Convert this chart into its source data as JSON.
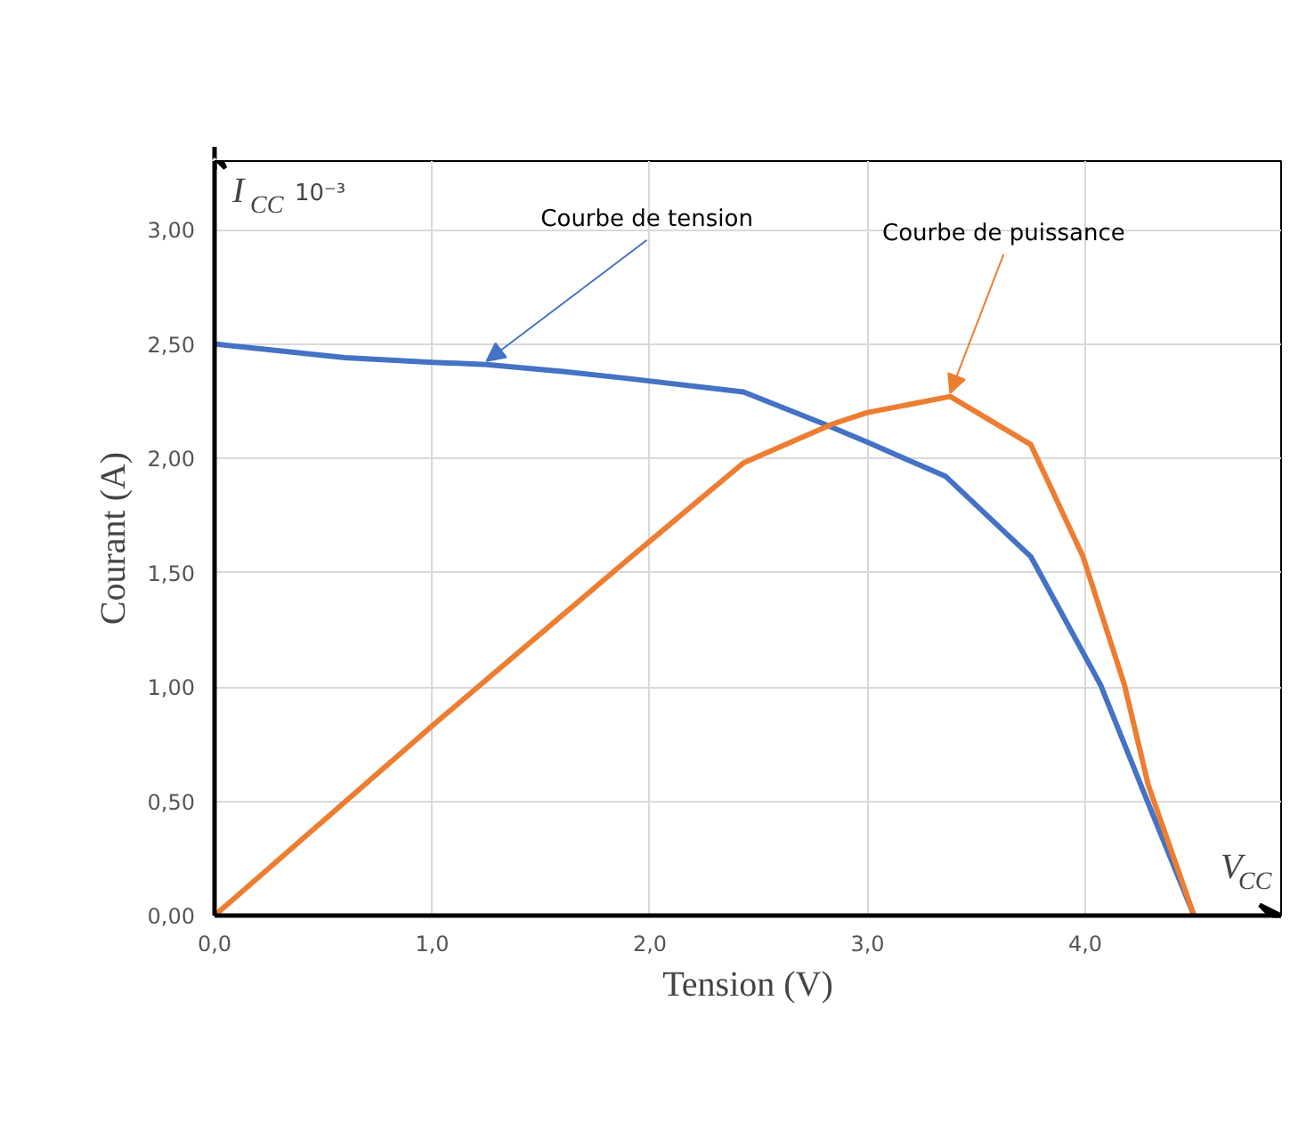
{
  "chart_data": {
    "type": "line",
    "xlabel": "Tension (V)",
    "ylabel": "Courant (A)",
    "annotations": [
      "I$_{CC}$",
      "10⁻³",
      "V$_{CC}$"
    ],
    "xlim": [
      0,
      4.9
    ],
    "ylim": [
      0,
      3.3
    ],
    "xticks": [
      {
        "value": 0,
        "label": "0,0"
      },
      {
        "value": 1,
        "label": "1,0"
      },
      {
        "value": 2,
        "label": "2,0"
      },
      {
        "value": 3,
        "label": "3,0"
      },
      {
        "value": 4,
        "label": "4,0"
      }
    ],
    "yticks": [
      {
        "value": 0,
        "label": "0,00"
      },
      {
        "value": 0.5,
        "label": "0,50"
      },
      {
        "value": 1,
        "label": "1,00"
      },
      {
        "value": 1.5,
        "label": "1,50"
      },
      {
        "value": 2,
        "label": "2,00"
      },
      {
        "value": 2.5,
        "label": "2,50"
      },
      {
        "value": 3,
        "label": "3,00"
      }
    ],
    "grid": true,
    "marker": "none",
    "line_style": "solid",
    "series": [
      {
        "name": "Courbe de tension",
        "color": "#4472c4",
        "x": [
          0,
          0.6,
          1.0,
          1.25,
          1.6,
          1.89,
          2.43,
          2.8,
          3.0,
          3.36,
          3.75,
          4.07,
          4.29,
          4.5
        ],
        "values": [
          2.5,
          2.44,
          2.42,
          2.41,
          2.38,
          2.35,
          2.29,
          2.15,
          2.07,
          1.92,
          1.57,
          1.01,
          0.49,
          0
        ]
      },
      {
        "name": "Courbe de puissance",
        "color": "#ed7d31",
        "x": [
          0,
          1.0,
          1.89,
          2.43,
          2.84,
          3.0,
          3.38,
          3.75,
          3.99,
          4.18,
          4.29,
          4.5
        ],
        "values": [
          0,
          0.83,
          1.55,
          1.98,
          2.15,
          2.2,
          2.27,
          2.06,
          1.57,
          1.01,
          0.57,
          0
        ]
      }
    ]
  }
}
